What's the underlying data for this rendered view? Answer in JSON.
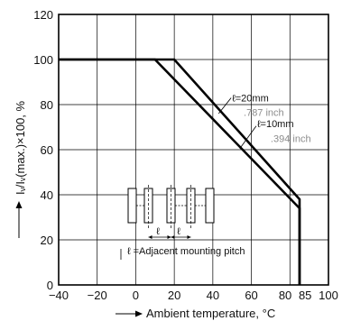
{
  "chart_data": {
    "type": "line",
    "xlabel": "Ambient temperature, °C",
    "ylabel": "Iᵥ/Iᵥ(max.)×100, %",
    "x_ticks": [
      -40,
      -20,
      0,
      20,
      40,
      60,
      80,
      85,
      100
    ],
    "x_tick_labels": [
      "−40",
      "−20",
      "0",
      "20",
      "40",
      "60",
      "80",
      "85",
      "100"
    ],
    "y_ticks": [
      0,
      20,
      40,
      60,
      80,
      100,
      120
    ],
    "y_tick_labels": [
      "0",
      "20",
      "40",
      "60",
      "80",
      "100",
      "120"
    ],
    "xlim": [
      -40,
      100
    ],
    "ylim": [
      0,
      120
    ],
    "grid": true,
    "series": [
      {
        "name": "ℓ=20mm",
        "name_sub": ".787 inch",
        "points": [
          [
            -40,
            100
          ],
          [
            20,
            100
          ],
          [
            85,
            38
          ],
          [
            85,
            0
          ]
        ]
      },
      {
        "name": "ℓ=10mm",
        "name_sub": ".394 inch",
        "points": [
          [
            -40,
            100
          ],
          [
            10,
            100
          ],
          [
            85,
            34
          ],
          [
            85,
            0
          ]
        ]
      }
    ],
    "inset_caption": "ℓ =Adjacent mounting pitch",
    "inset_pitch_symbol": "ℓ"
  }
}
